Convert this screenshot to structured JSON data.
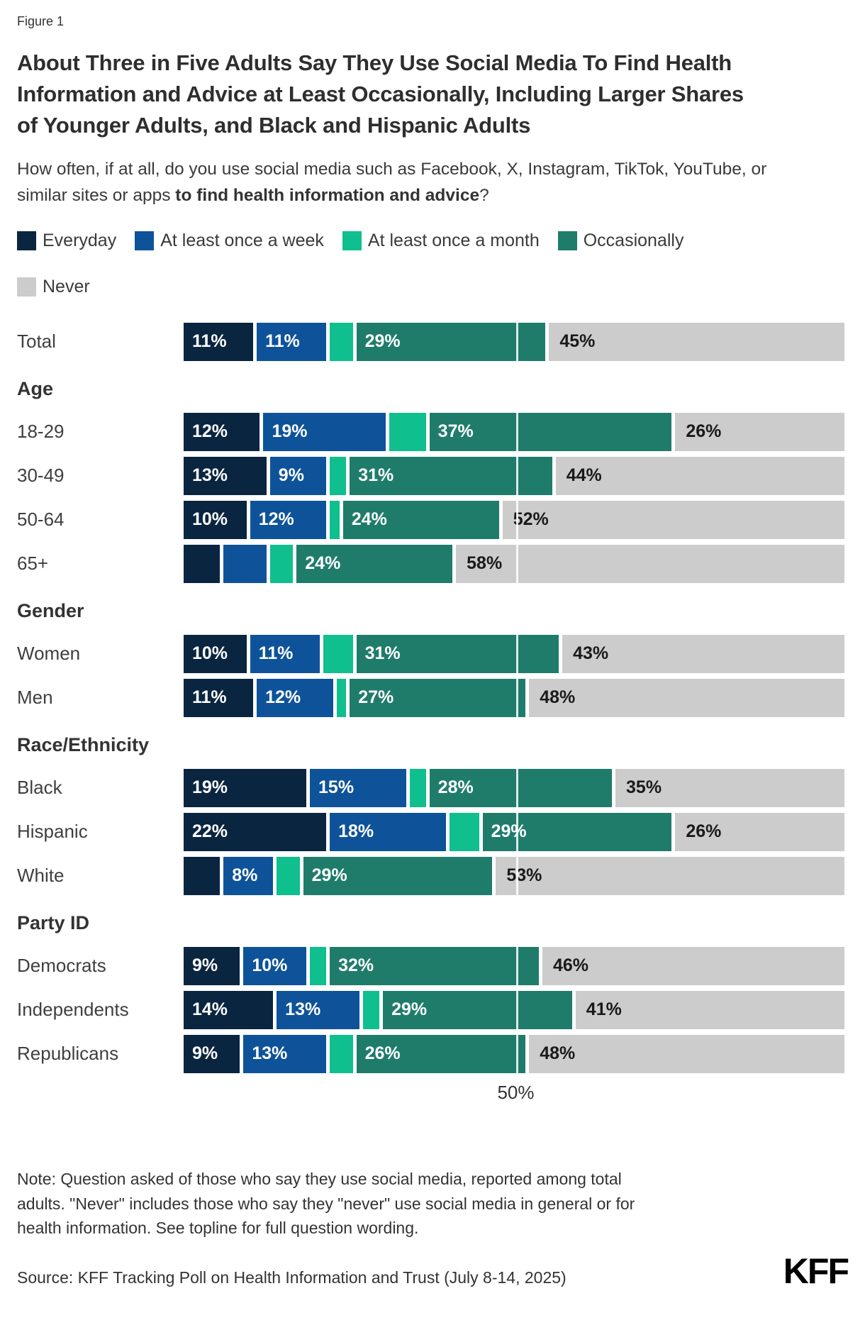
{
  "figure_label": "Figure 1",
  "title": "About Three in Five Adults Say They Use Social Media To Find Health Information and Advice at Least Occasionally, Including Larger Shares of Younger Adults, and Black and Hispanic Adults",
  "subtitle": {
    "regular": "How often, if at all, do you use social media such as Facebook, X, Instagram, TikTok, YouTube, or similar sites or apps ",
    "bold": "to find health information and advice",
    "suffix": "?"
  },
  "chart_data": {
    "type": "bar",
    "orientation": "horizontal",
    "stacked": true,
    "unit": "%",
    "xlim": [
      0,
      100
    ],
    "gridline": {
      "value": 50,
      "label": "50%"
    },
    "label_min_value": 8,
    "series": [
      {
        "name": "Everyday",
        "color": "#0a2540"
      },
      {
        "name": "At least once a week",
        "color": "#0e5399"
      },
      {
        "name": "At least once a month",
        "color": "#0fbf8e"
      },
      {
        "name": "Occasionally",
        "color": "#1f7c6b"
      },
      {
        "name": "Never",
        "color": "#cccccc",
        "label_color": "#1a1a1a"
      }
    ],
    "groups": [
      {
        "header": null,
        "rows": [
          {
            "label": "Total",
            "values": [
              11,
              11,
              4,
              29,
              45
            ]
          }
        ]
      },
      {
        "header": "Age",
        "rows": [
          {
            "label": "18-29",
            "values": [
              12,
              19,
              6,
              37,
              26
            ]
          },
          {
            "label": "30-49",
            "values": [
              13,
              9,
              3,
              31,
              44
            ]
          },
          {
            "label": "50-64",
            "values": [
              10,
              12,
              2,
              24,
              52
            ]
          },
          {
            "label": "65+",
            "values": [
              6,
              7,
              4,
              24,
              58
            ]
          }
        ]
      },
      {
        "header": "Gender",
        "rows": [
          {
            "label": "Women",
            "values": [
              10,
              11,
              5,
              31,
              43
            ]
          },
          {
            "label": "Men",
            "values": [
              11,
              12,
              2,
              27,
              48
            ]
          }
        ]
      },
      {
        "header": "Race/Ethnicity",
        "rows": [
          {
            "label": "Black",
            "values": [
              19,
              15,
              3,
              28,
              35
            ]
          },
          {
            "label": "Hispanic",
            "values": [
              22,
              18,
              5,
              29,
              26
            ]
          },
          {
            "label": "White",
            "values": [
              6,
              8,
              4,
              29,
              53
            ]
          }
        ]
      },
      {
        "header": "Party ID",
        "rows": [
          {
            "label": "Democrats",
            "values": [
              9,
              10,
              3,
              32,
              46
            ]
          },
          {
            "label": "Independents",
            "values": [
              14,
              13,
              3,
              29,
              41
            ]
          },
          {
            "label": "Republicans",
            "values": [
              9,
              13,
              4,
              26,
              48
            ]
          }
        ]
      }
    ]
  },
  "note": "Note: Question asked of those who say they use social media, reported among total adults. \"Never\" includes those who say they \"never\" use social media in general or for health information. See topline for full question wording.",
  "source": "Source: KFF Tracking Poll on Health Information and Trust (July 8-14, 2025)",
  "logo": "KFF"
}
